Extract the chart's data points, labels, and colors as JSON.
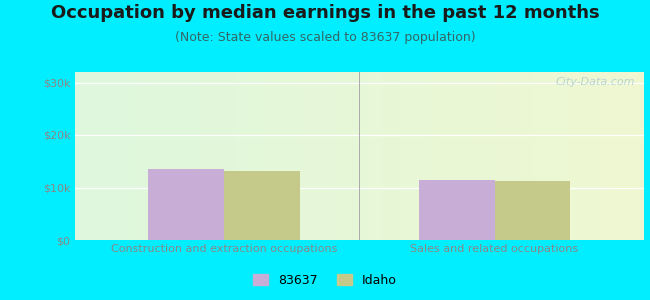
{
  "title": "Occupation by median earnings in the past 12 months",
  "subtitle": "(Note: State values scaled to 83637 population)",
  "categories": [
    "Construction and extraction occupations",
    "Sales and related occupations"
  ],
  "series": {
    "83637": [
      13500,
      11500
    ],
    "Idaho": [
      13200,
      11300
    ]
  },
  "bar_colors": {
    "83637": "#c8aed6",
    "Idaho": "#c5c98a"
  },
  "ylim": [
    0,
    32000
  ],
  "yticks": [
    0,
    10000,
    20000,
    30000
  ],
  "ytick_labels": [
    "$0",
    "$10k",
    "$20k",
    "$30k"
  ],
  "outer_bg": "#00eeff",
  "title_color": "#1a1a1a",
  "subtitle_color": "#336666",
  "tick_color": "#888888",
  "title_fontsize": 13,
  "subtitle_fontsize": 9,
  "watermark": "City-Data.com",
  "bar_width": 0.28,
  "group_positions": [
    0.5,
    1.5
  ]
}
